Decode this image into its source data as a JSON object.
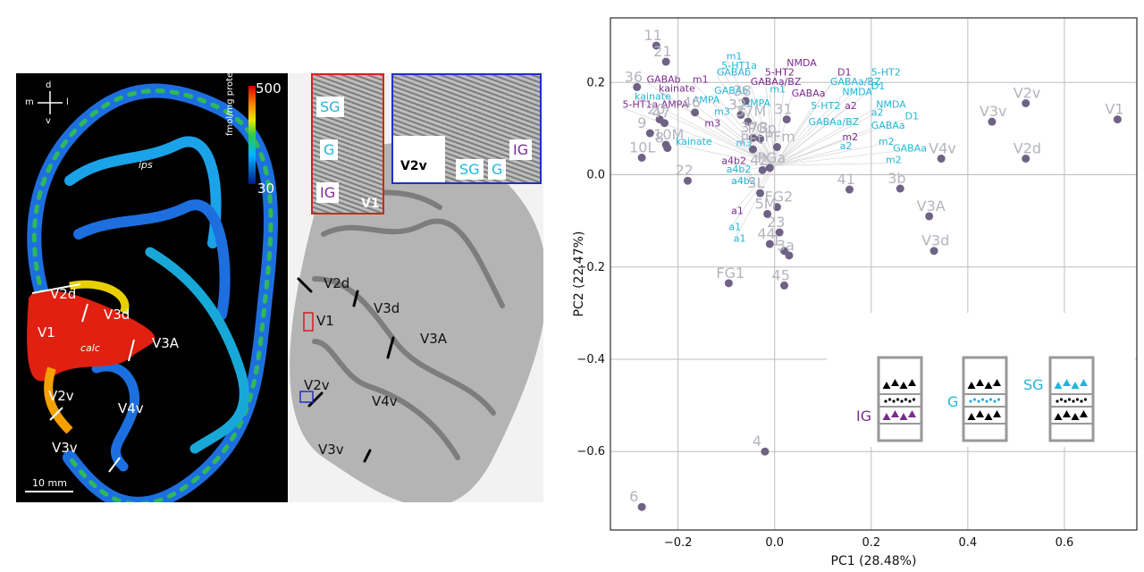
{
  "left_panel": {
    "labels": [
      "V2d",
      "V3d",
      "V1",
      "calc",
      "V3A",
      "V2v",
      "V4v",
      "V3v",
      "ips"
    ],
    "colorbar": {
      "max": "500",
      "min": "30",
      "unit": "fmol/mg protein"
    },
    "scalebar": "10 mm",
    "compass": {
      "d": "d",
      "v": "v",
      "m": "m",
      "l": "l"
    }
  },
  "mid_panel": {
    "labels": [
      "V2d",
      "V1",
      "V3d",
      "V3A",
      "V2v",
      "V4v",
      "V3v"
    ],
    "inset_red": {
      "layers": [
        "SG",
        "G",
        "IG"
      ],
      "title": "V1"
    },
    "inset_blue": {
      "labels": [
        "V2v",
        "SG",
        "G",
        "IG"
      ]
    }
  },
  "chart_data": {
    "type": "scatter",
    "xlabel": "PC1 (28.48%)",
    "ylabel": "PC2 (22.47%)",
    "xlim": [
      -0.34,
      0.75
    ],
    "ylim": [
      -0.77,
      0.34
    ],
    "xticks": [
      -0.2,
      0.0,
      0.2,
      0.4,
      0.6
    ],
    "xtick_labels": [
      "−0.2",
      "0.0",
      "0.2",
      "0.4",
      "0.6"
    ],
    "yticks": [
      0.2,
      0.0,
      -0.2,
      -0.4,
      -0.6
    ],
    "ytick_labels": [
      "0.2",
      "0.0",
      "−0.2",
      "−0.4",
      "−0.6"
    ],
    "grid": true,
    "point_color": "#6e6384",
    "label_color": "#b4b4bf",
    "points": [
      {
        "label": "11",
        "x": -0.245,
        "y": 0.28
      },
      {
        "label": "21",
        "x": -0.225,
        "y": 0.245
      },
      {
        "label": "36",
        "x": -0.285,
        "y": 0.19
      },
      {
        "label": "20",
        "x": -0.238,
        "y": 0.12
      },
      {
        "label": "47",
        "x": -0.228,
        "y": 0.112
      },
      {
        "label": "9",
        "x": -0.258,
        "y": 0.09
      },
      {
        "label": "10M",
        "x": -0.225,
        "y": 0.065
      },
      {
        "label": "8",
        "x": -0.222,
        "y": 0.058
      },
      {
        "label": "10L",
        "x": -0.275,
        "y": 0.037
      },
      {
        "label": "22",
        "x": -0.18,
        "y": -0.013
      },
      {
        "label": "46",
        "x": -0.165,
        "y": 0.135
      },
      {
        "label": "38",
        "x": -0.06,
        "y": 0.16
      },
      {
        "label": "32",
        "x": -0.07,
        "y": 0.13
      },
      {
        "label": "37M",
        "x": -0.055,
        "y": 0.115
      },
      {
        "label": "31",
        "x": 0.025,
        "y": 0.12
      },
      {
        "label": "37B",
        "x": -0.045,
        "y": 0.08
      },
      {
        "label": "PGp",
        "x": -0.03,
        "y": 0.078
      },
      {
        "label": "PFt",
        "x": -0.045,
        "y": 0.055
      },
      {
        "label": "PFm",
        "x": 0.005,
        "y": 0.06
      },
      {
        "label": "42",
        "x": -0.025,
        "y": 0.01
      },
      {
        "label": "PGa",
        "x": -0.01,
        "y": 0.015
      },
      {
        "label": "5L",
        "x": -0.03,
        "y": -0.04
      },
      {
        "label": "FG2",
        "x": 0.005,
        "y": -0.07
      },
      {
        "label": "5M",
        "x": -0.015,
        "y": -0.085
      },
      {
        "label": "23",
        "x": 0.01,
        "y": -0.125
      },
      {
        "label": "44",
        "x": -0.01,
        "y": -0.15
      },
      {
        "label": "1",
        "x": 0.02,
        "y": -0.165
      },
      {
        "label": "3a",
        "x": 0.03,
        "y": -0.175
      },
      {
        "label": "45",
        "x": 0.02,
        "y": -0.24
      },
      {
        "label": "FG1",
        "x": -0.095,
        "y": -0.235
      },
      {
        "label": "41",
        "x": 0.155,
        "y": -0.032
      },
      {
        "label": "3b",
        "x": 0.26,
        "y": -0.03
      },
      {
        "label": "V3A",
        "x": 0.32,
        "y": -0.09
      },
      {
        "label": "V3d",
        "x": 0.33,
        "y": -0.165
      },
      {
        "label": "V4v",
        "x": 0.345,
        "y": 0.035
      },
      {
        "label": "V3v",
        "x": 0.45,
        "y": 0.115
      },
      {
        "label": "V2v",
        "x": 0.52,
        "y": 0.155
      },
      {
        "label": "V2d",
        "x": 0.52,
        "y": 0.035
      },
      {
        "label": "V1",
        "x": 0.71,
        "y": 0.12
      },
      {
        "label": "4",
        "x": -0.02,
        "y": -0.6
      },
      {
        "label": "6",
        "x": -0.275,
        "y": -0.72
      }
    ],
    "loadings": [
      {
        "label": "m1",
        "x": -0.1,
        "y": 0.25,
        "layer": "SG"
      },
      {
        "label": "5-HT1a",
        "x": -0.11,
        "y": 0.23,
        "layer": "SG"
      },
      {
        "label": "NMDA",
        "x": 0.025,
        "y": 0.235,
        "layer": "IG"
      },
      {
        "label": "GABAb",
        "x": -0.12,
        "y": 0.215,
        "layer": "SG"
      },
      {
        "label": "5-HT2",
        "x": -0.02,
        "y": 0.215,
        "layer": "IG"
      },
      {
        "label": "D1",
        "x": 0.13,
        "y": 0.215,
        "layer": "IG"
      },
      {
        "label": "5-HT2",
        "x": 0.2,
        "y": 0.215,
        "layer": "SG"
      },
      {
        "label": "GABAb",
        "x": -0.265,
        "y": 0.2,
        "layer": "IG"
      },
      {
        "label": "m1",
        "x": -0.17,
        "y": 0.2,
        "layer": "IG"
      },
      {
        "label": "GABAa/BZ",
        "x": -0.05,
        "y": 0.195,
        "layer": "IG"
      },
      {
        "label": "GABAa/BZ",
        "x": 0.115,
        "y": 0.195,
        "layer": "SG"
      },
      {
        "label": "D1",
        "x": 0.2,
        "y": 0.185,
        "layer": "SG"
      },
      {
        "label": "kainate",
        "x": -0.24,
        "y": 0.18,
        "layer": "IG"
      },
      {
        "label": "GABAb",
        "x": -0.125,
        "y": 0.175,
        "layer": "SG"
      },
      {
        "label": "m1",
        "x": -0.01,
        "y": 0.178,
        "layer": "SG"
      },
      {
        "label": "GABAa",
        "x": 0.035,
        "y": 0.17,
        "layer": "IG"
      },
      {
        "label": "NMDA",
        "x": 0.14,
        "y": 0.172,
        "layer": "SG"
      },
      {
        "label": "kainate",
        "x": -0.29,
        "y": 0.163,
        "layer": "SG"
      },
      {
        "label": "AMPA",
        "x": -0.17,
        "y": 0.155,
        "layer": "SG"
      },
      {
        "label": "5-HT1a",
        "x": -0.315,
        "y": 0.145,
        "layer": "IG"
      },
      {
        "label": "AMPA",
        "x": -0.235,
        "y": 0.145,
        "layer": "IG"
      },
      {
        "label": "AMPA",
        "x": -0.065,
        "y": 0.148,
        "layer": "SG"
      },
      {
        "label": "5-HT2",
        "x": 0.075,
        "y": 0.142,
        "layer": "SG"
      },
      {
        "label": "a2",
        "x": 0.145,
        "y": 0.142,
        "layer": "IG"
      },
      {
        "label": "NMDA",
        "x": 0.21,
        "y": 0.145,
        "layer": "SG"
      },
      {
        "label": "m3",
        "x": -0.125,
        "y": 0.13,
        "layer": "SG"
      },
      {
        "label": "a2",
        "x": 0.2,
        "y": 0.128,
        "layer": "SG"
      },
      {
        "label": "D1",
        "x": 0.27,
        "y": 0.12,
        "layer": "SG"
      },
      {
        "label": "m3",
        "x": -0.145,
        "y": 0.105,
        "layer": "IG"
      },
      {
        "label": "GABAa/BZ",
        "x": 0.07,
        "y": 0.108,
        "layer": "SG"
      },
      {
        "label": "GABAa",
        "x": 0.2,
        "y": 0.1,
        "layer": "SG"
      },
      {
        "label": "m2",
        "x": 0.14,
        "y": 0.075,
        "layer": "IG"
      },
      {
        "label": "kainate",
        "x": -0.205,
        "y": 0.065,
        "layer": "SG"
      },
      {
        "label": "m3",
        "x": -0.08,
        "y": 0.062,
        "layer": "SG"
      },
      {
        "label": "a2",
        "x": 0.135,
        "y": 0.055,
        "layer": "SG"
      },
      {
        "label": "m2",
        "x": 0.215,
        "y": 0.065,
        "layer": "SG"
      },
      {
        "label": "GABAa",
        "x": 0.245,
        "y": 0.05,
        "layer": "SG"
      },
      {
        "label": "a4b2",
        "x": -0.11,
        "y": 0.023,
        "layer": "IG"
      },
      {
        "label": "m2",
        "x": 0.23,
        "y": 0.025,
        "layer": "SG"
      },
      {
        "label": "a4b2",
        "x": -0.1,
        "y": 0.005,
        "layer": "SG"
      },
      {
        "label": "a4b2",
        "x": -0.09,
        "y": -0.02,
        "layer": "SG"
      },
      {
        "label": "a1",
        "x": -0.09,
        "y": -0.085,
        "layer": "IG"
      },
      {
        "label": "a1",
        "x": -0.095,
        "y": -0.12,
        "layer": "SG"
      },
      {
        "label": "a1",
        "x": -0.085,
        "y": -0.145,
        "layer": "SG"
      }
    ],
    "layer_colors": {
      "SG": "#21b6d8",
      "G": "#21b6d8",
      "IG": "#7c2b8f"
    },
    "legend": {
      "labels": [
        "IG",
        "G",
        "SG"
      ]
    }
  }
}
